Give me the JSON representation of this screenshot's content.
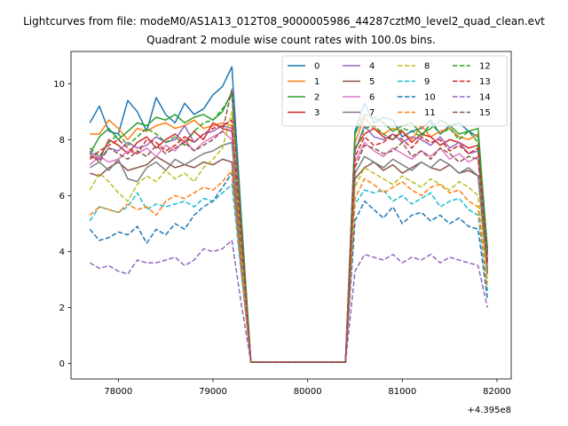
{
  "figure": {
    "suptitle": "Lightcurves from file: modeM0/AS1A13_012T08_9000005986_44287cztM0_level2_quad_clean.evt"
  },
  "chart_data": {
    "type": "line",
    "title": "Quadrant 2 module wise count rates with 100.0s bins.",
    "xlabel": "",
    "ylabel": "",
    "x_offset_label": "+4.395e8",
    "xlim": [
      77500,
      82150
    ],
    "ylim": [
      -0.55,
      11.15
    ],
    "xticks": [
      78000,
      79000,
      80000,
      81000,
      82000
    ],
    "yticks": [
      0,
      2,
      4,
      6,
      8,
      10
    ],
    "legend_position": "top-right",
    "legend_columns": 4,
    "grid": false,
    "x": [
      77700,
      77800,
      77900,
      78000,
      78100,
      78200,
      78300,
      78400,
      78500,
      78600,
      78700,
      78800,
      78900,
      79000,
      79100,
      79200,
      79300,
      79400,
      79500,
      79600,
      79700,
      79800,
      79900,
      80000,
      80100,
      80200,
      80300,
      80400,
      80500,
      80600,
      80700,
      80800,
      80900,
      81000,
      81100,
      81200,
      81300,
      81400,
      81500,
      81600,
      81700,
      81800,
      81900
    ],
    "series": [
      {
        "name": "0",
        "color": "#1f77b4",
        "style": "solid",
        "values": [
          8.6,
          9.2,
          8.3,
          8.2,
          9.4,
          9.0,
          8.3,
          9.5,
          8.9,
          8.6,
          9.3,
          8.9,
          9.1,
          9.6,
          9.9,
          10.6,
          5.2,
          0.05,
          0.05,
          0.05,
          0.05,
          0.05,
          0.05,
          0.05,
          0.05,
          0.05,
          0.05,
          0.05,
          8.3,
          9.3,
          8.6,
          8.8,
          8.7,
          8.1,
          8.3,
          8.4,
          8.7,
          8.2,
          8.5,
          8.6,
          8.3,
          8.1,
          4.1
        ]
      },
      {
        "name": "1",
        "color": "#ff7f0e",
        "style": "solid",
        "values": [
          8.2,
          8.2,
          8.7,
          8.4,
          8.0,
          8.4,
          8.3,
          8.5,
          8.6,
          8.4,
          8.5,
          8.7,
          8.4,
          8.5,
          8.6,
          8.5,
          4.3,
          0.05,
          0.05,
          0.05,
          0.05,
          0.05,
          0.05,
          0.05,
          0.05,
          0.05,
          0.05,
          0.05,
          7.9,
          8.8,
          8.4,
          8.2,
          8.4,
          8.3,
          8.0,
          8.5,
          8.1,
          8.3,
          8.4,
          8.1,
          8.0,
          8.2,
          3.9
        ]
      },
      {
        "name": "2",
        "color": "#2ca02c",
        "style": "solid",
        "values": [
          7.5,
          8.1,
          8.4,
          8.0,
          8.3,
          8.6,
          8.5,
          8.8,
          8.7,
          8.9,
          8.6,
          8.8,
          8.9,
          8.7,
          9.0,
          9.7,
          5.0,
          0.05,
          0.05,
          0.05,
          0.05,
          0.05,
          0.05,
          0.05,
          0.05,
          0.05,
          0.05,
          0.05,
          8.2,
          8.9,
          8.8,
          8.6,
          8.3,
          8.5,
          8.6,
          8.2,
          8.4,
          8.7,
          8.5,
          8.2,
          8.3,
          8.4,
          4.0
        ]
      },
      {
        "name": "3",
        "color": "#d62728",
        "style": "solid",
        "values": [
          7.4,
          7.3,
          8.0,
          7.8,
          7.5,
          7.9,
          8.1,
          7.7,
          8.0,
          8.2,
          7.9,
          8.3,
          8.0,
          8.6,
          8.4,
          8.3,
          4.2,
          0.05,
          0.05,
          0.05,
          0.05,
          0.05,
          0.05,
          0.05,
          0.05,
          0.05,
          0.05,
          0.05,
          7.7,
          8.2,
          8.4,
          8.1,
          8.0,
          8.3,
          7.9,
          8.2,
          8.1,
          7.8,
          8.0,
          7.9,
          7.7,
          7.8,
          3.7
        ]
      },
      {
        "name": "4",
        "color": "#9467bd",
        "style": "solid",
        "values": [
          7.6,
          7.3,
          7.7,
          7.6,
          7.9,
          7.7,
          7.8,
          8.1,
          7.9,
          8.0,
          8.5,
          7.9,
          8.2,
          8.3,
          8.5,
          8.4,
          4.3,
          0.05,
          0.05,
          0.05,
          0.05,
          0.05,
          0.05,
          0.05,
          0.05,
          0.05,
          0.05,
          0.05,
          7.6,
          8.5,
          8.1,
          8.0,
          8.2,
          7.9,
          8.1,
          8.0,
          7.8,
          8.1,
          7.7,
          7.9,
          7.5,
          7.6,
          3.6
        ]
      },
      {
        "name": "5",
        "color": "#8c564b",
        "style": "solid",
        "values": [
          6.8,
          6.7,
          7.0,
          7.2,
          6.9,
          7.0,
          7.1,
          7.4,
          7.2,
          7.0,
          7.1,
          7.0,
          7.2,
          7.1,
          7.3,
          7.2,
          3.6,
          0.05,
          0.05,
          0.05,
          0.05,
          0.05,
          0.05,
          0.05,
          0.05,
          0.05,
          0.05,
          0.05,
          6.6,
          7.0,
          7.2,
          6.9,
          7.1,
          6.8,
          7.0,
          7.2,
          7.0,
          6.9,
          7.1,
          6.8,
          6.9,
          6.7,
          3.2
        ]
      },
      {
        "name": "6",
        "color": "#e377c2",
        "style": "solid",
        "values": [
          7.1,
          7.4,
          7.2,
          7.3,
          7.6,
          7.5,
          7.7,
          7.4,
          7.8,
          7.6,
          8.0,
          7.6,
          7.9,
          8.1,
          8.3,
          8.0,
          4.1,
          0.05,
          0.05,
          0.05,
          0.05,
          0.05,
          0.05,
          0.05,
          0.05,
          0.05,
          0.05,
          0.05,
          7.2,
          7.9,
          7.6,
          7.4,
          7.7,
          7.5,
          7.3,
          7.6,
          7.4,
          7.7,
          7.3,
          7.5,
          7.2,
          7.4,
          3.4
        ]
      },
      {
        "name": "7",
        "color": "#7f7f7f",
        "style": "solid",
        "values": [
          7.0,
          7.2,
          6.9,
          7.3,
          6.6,
          6.5,
          7.0,
          7.2,
          6.9,
          7.3,
          7.1,
          7.3,
          7.5,
          7.6,
          7.8,
          7.9,
          3.9,
          0.05,
          0.05,
          0.05,
          0.05,
          0.05,
          0.05,
          0.05,
          0.05,
          0.05,
          0.05,
          0.05,
          6.8,
          7.4,
          7.2,
          7.0,
          7.3,
          7.1,
          6.9,
          7.2,
          7.0,
          7.3,
          7.1,
          6.8,
          7.0,
          6.7,
          3.3
        ]
      },
      {
        "name": "8",
        "color": "#bcbd22",
        "style": "dashed",
        "values": [
          6.2,
          6.8,
          6.5,
          6.1,
          5.8,
          6.4,
          6.7,
          6.5,
          6.9,
          6.6,
          6.8,
          6.5,
          7.0,
          7.3,
          7.7,
          9.0,
          4.2,
          0.05,
          0.05,
          0.05,
          0.05,
          0.05,
          0.05,
          0.05,
          0.05,
          0.05,
          0.05,
          0.05,
          6.3,
          7.0,
          6.8,
          6.6,
          6.4,
          6.7,
          6.5,
          6.3,
          6.6,
          6.4,
          6.2,
          6.5,
          6.3,
          6.0,
          2.9
        ]
      },
      {
        "name": "9",
        "color": "#17becf",
        "style": "dashed",
        "values": [
          5.1,
          5.6,
          5.5,
          5.4,
          5.6,
          6.1,
          5.5,
          5.7,
          5.6,
          5.7,
          5.8,
          5.6,
          5.9,
          5.8,
          6.1,
          6.4,
          3.2,
          0.05,
          0.05,
          0.05,
          0.05,
          0.05,
          0.05,
          0.05,
          0.05,
          0.05,
          0.05,
          0.05,
          5.7,
          6.2,
          6.1,
          6.2,
          5.8,
          6.0,
          5.7,
          5.9,
          6.1,
          5.6,
          5.8,
          5.9,
          5.5,
          5.3,
          2.6
        ]
      },
      {
        "name": "10",
        "color": "#1f77b4",
        "style": "dashed",
        "values": [
          4.8,
          4.4,
          4.5,
          4.7,
          4.6,
          4.9,
          4.3,
          4.8,
          4.6,
          5.0,
          4.8,
          5.3,
          5.6,
          5.8,
          6.3,
          6.8,
          3.3,
          0.05,
          0.05,
          0.05,
          0.05,
          0.05,
          0.05,
          0.05,
          0.05,
          0.05,
          0.05,
          0.05,
          5.1,
          5.8,
          5.5,
          5.2,
          5.6,
          5.0,
          5.3,
          5.4,
          5.1,
          5.3,
          5.0,
          5.2,
          4.9,
          4.8,
          2.3
        ]
      },
      {
        "name": "11",
        "color": "#ff7f0e",
        "style": "dashed",
        "values": [
          5.3,
          5.6,
          5.5,
          5.4,
          5.7,
          5.5,
          5.6,
          5.3,
          5.8,
          6.0,
          5.9,
          6.1,
          6.3,
          6.2,
          6.5,
          6.9,
          3.4,
          0.05,
          0.05,
          0.05,
          0.05,
          0.05,
          0.05,
          0.05,
          0.05,
          0.05,
          0.05,
          0.05,
          5.9,
          6.6,
          6.4,
          6.1,
          6.3,
          6.5,
          6.2,
          6.0,
          6.3,
          6.4,
          6.1,
          6.2,
          5.8,
          5.6,
          2.7
        ]
      },
      {
        "name": "12",
        "color": "#2ca02c",
        "style": "dashed",
        "values": [
          7.7,
          7.4,
          7.9,
          8.2,
          7.8,
          8.1,
          8.4,
          8.2,
          7.9,
          8.1,
          7.8,
          8.3,
          8.6,
          8.7,
          9.1,
          9.6,
          5.0,
          0.05,
          0.05,
          0.05,
          0.05,
          0.05,
          0.05,
          0.05,
          0.05,
          0.05,
          0.05,
          0.05,
          7.6,
          8.4,
          8.5,
          8.2,
          8.0,
          8.4,
          8.3,
          8.1,
          8.6,
          8.2,
          8.4,
          8.0,
          8.3,
          7.9,
          3.9
        ]
      },
      {
        "name": "13",
        "color": "#d62728",
        "style": "dashed",
        "values": [
          7.3,
          7.6,
          7.8,
          8.0,
          7.7,
          7.5,
          8.0,
          7.9,
          7.6,
          7.8,
          8.1,
          7.9,
          8.2,
          8.4,
          8.5,
          8.7,
          4.4,
          0.05,
          0.05,
          0.05,
          0.05,
          0.05,
          0.05,
          0.05,
          0.05,
          0.05,
          0.05,
          0.05,
          7.4,
          8.1,
          7.8,
          7.9,
          8.2,
          8.0,
          7.7,
          8.1,
          7.9,
          8.0,
          7.6,
          7.8,
          7.5,
          7.7,
          3.6
        ]
      },
      {
        "name": "14",
        "color": "#9467bd",
        "style": "dashed",
        "values": [
          3.6,
          3.4,
          3.5,
          3.3,
          3.2,
          3.7,
          3.6,
          3.6,
          3.7,
          3.8,
          3.5,
          3.7,
          4.1,
          4.0,
          4.1,
          4.4,
          2.1,
          0.05,
          0.05,
          0.05,
          0.05,
          0.05,
          0.05,
          0.05,
          0.05,
          0.05,
          0.05,
          0.05,
          3.3,
          3.9,
          3.8,
          3.7,
          3.9,
          3.6,
          3.8,
          3.7,
          3.9,
          3.6,
          3.8,
          3.7,
          3.6,
          3.5,
          2.0
        ]
      },
      {
        "name": "15",
        "color": "#8c564b",
        "style": "dashed",
        "values": [
          7.5,
          7.2,
          7.7,
          7.5,
          7.3,
          7.6,
          7.4,
          7.8,
          7.5,
          7.7,
          7.9,
          7.6,
          7.8,
          8.0,
          8.3,
          9.8,
          4.7,
          0.05,
          0.05,
          0.05,
          0.05,
          0.05,
          0.05,
          0.05,
          0.05,
          0.05,
          0.05,
          0.05,
          7.0,
          7.8,
          7.7,
          7.5,
          7.6,
          7.9,
          7.4,
          7.6,
          7.3,
          7.7,
          7.5,
          7.2,
          7.4,
          7.3,
          3.5
        ]
      }
    ]
  }
}
